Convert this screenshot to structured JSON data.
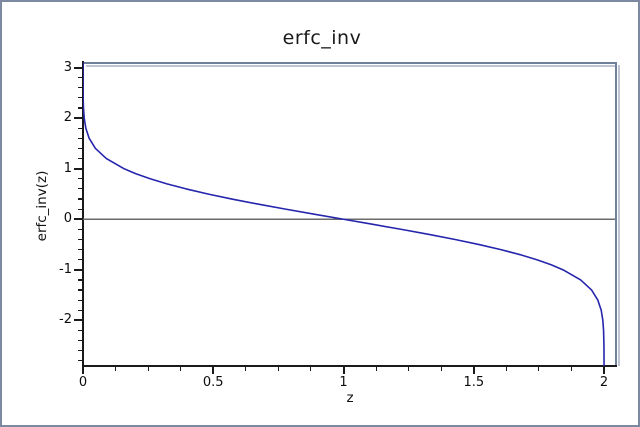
{
  "window": {
    "background": "#ffffff"
  },
  "chart_data": {
    "type": "line",
    "title": "erfc_inv",
    "xlabel": "z",
    "ylabel": "erfc_inv(z)",
    "xlim": [
      0,
      2.042
    ],
    "ylim": [
      -2.901,
      3.109
    ],
    "x_major_ticks": [
      0,
      0.5,
      1,
      1.5,
      2
    ],
    "x_major_labels": [
      "0",
      "0.5",
      "1",
      "1.5",
      "2"
    ],
    "x_minor_step": 0.125,
    "y_major_ticks": [
      3,
      2,
      1,
      0,
      -1,
      -2
    ],
    "y_major_labels": [
      "3",
      "2",
      "1",
      "0",
      "-1",
      "-2"
    ],
    "y_minor_step": 0.2,
    "grid": false,
    "legend": false,
    "zero_line_y": 0,
    "colors": {
      "curve": "#2525ad",
      "frame": "#6f8198",
      "frame_shadow": "#bdc6d2",
      "axis": "#1a1a1a",
      "tick": "#1a1a1a",
      "zero_line": "#6b6b6b",
      "outer_border": "#7b8aa1",
      "background": "#ffffff"
    },
    "series": [
      {
        "name": "erfc_inv(z)",
        "color": "#2525ad",
        "points": [
          [
            1e-05,
            3.11
          ],
          [
            4e-05,
            2.9
          ],
          [
            0.0001,
            2.751
          ],
          [
            0.0002,
            2.63
          ],
          [
            0.0004,
            2.5
          ],
          [
            0.001,
            2.327
          ],
          [
            0.00186,
            2.2
          ],
          [
            0.00468,
            2.0
          ],
          [
            0.0109,
            1.8
          ],
          [
            0.0237,
            1.6
          ],
          [
            0.0477,
            1.4
          ],
          [
            0.0897,
            1.2
          ],
          [
            0.1573,
            1.0
          ],
          [
            0.2031,
            0.9
          ],
          [
            0.2579,
            0.8
          ],
          [
            0.3222,
            0.7
          ],
          [
            0.3961,
            0.6
          ],
          [
            0.4795,
            0.5
          ],
          [
            0.5716,
            0.4
          ],
          [
            0.6714,
            0.3
          ],
          [
            0.7773,
            0.2
          ],
          [
            0.8875,
            0.1
          ],
          [
            1.0,
            0.0
          ],
          [
            1.1125,
            -0.1
          ],
          [
            1.2227,
            -0.2
          ],
          [
            1.3286,
            -0.3
          ],
          [
            1.4284,
            -0.4
          ],
          [
            1.5205,
            -0.5
          ],
          [
            1.6039,
            -0.6
          ],
          [
            1.6778,
            -0.7
          ],
          [
            1.7421,
            -0.8
          ],
          [
            1.7969,
            -0.9
          ],
          [
            1.8427,
            -1.0
          ],
          [
            1.9103,
            -1.2
          ],
          [
            1.9523,
            -1.4
          ],
          [
            1.9763,
            -1.6
          ],
          [
            1.9891,
            -1.8
          ],
          [
            1.99532,
            -2.0
          ],
          [
            1.99814,
            -2.2
          ],
          [
            1.9996,
            -2.5
          ],
          [
            1.9999,
            -2.751
          ],
          [
            1.99996,
            -2.9
          ],
          [
            1.99999,
            -3.11
          ]
        ]
      }
    ]
  }
}
